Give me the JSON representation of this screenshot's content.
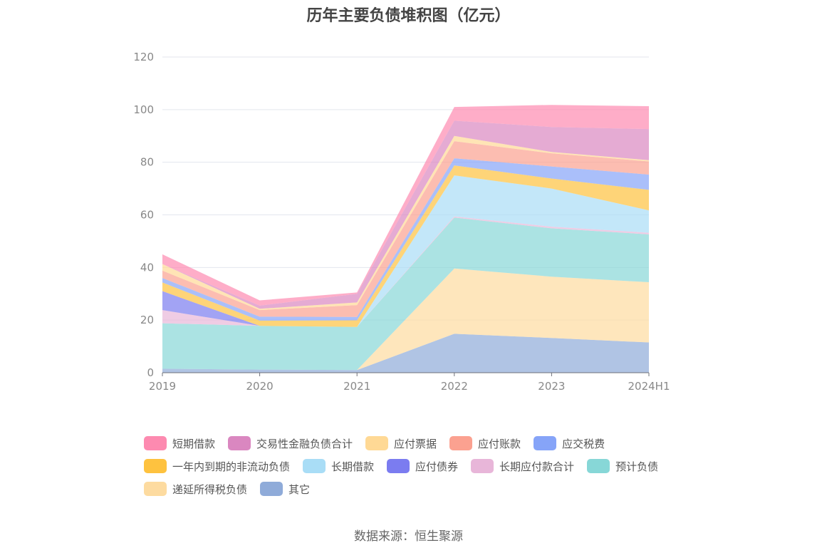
{
  "chart_data": {
    "type": "area",
    "stacked": true,
    "title": "历年主要负债堆积图（亿元）",
    "categories": [
      "2019",
      "2020",
      "2021",
      "2022",
      "2023",
      "2024H1"
    ],
    "ylim": [
      0,
      120
    ],
    "yticks": [
      0,
      20,
      40,
      60,
      80,
      100,
      120
    ],
    "grid": true,
    "legend_position": "bottom",
    "series": [
      {
        "name": "其它",
        "color": "#8fabd9",
        "values": [
          1.5,
          1.2,
          1.0,
          14.8,
          13.2,
          11.5
        ]
      },
      {
        "name": "递延所得税负债",
        "color": "#fddba0",
        "values": [
          0.0,
          0.0,
          0.0,
          24.8,
          23.3,
          22.9
        ]
      },
      {
        "name": "预计负债",
        "color": "#87d7d7",
        "values": [
          17.3,
          16.6,
          16.4,
          19.4,
          18.4,
          18.2
        ]
      },
      {
        "name": "长期应付款合计",
        "color": "#e8b6d9",
        "values": [
          5.0,
          0.0,
          0.0,
          0.4,
          0.6,
          0.6
        ]
      },
      {
        "name": "应付债券",
        "color": "#7b7cf0",
        "values": [
          7.2,
          0.0,
          0.0,
          0.0,
          0.0,
          0.0
        ]
      },
      {
        "name": "长期借款",
        "color": "#a9ddf6",
        "values": [
          0.0,
          0.0,
          0.0,
          15.6,
          14.5,
          8.5
        ]
      },
      {
        "name": "一年内到期的非流动负债",
        "color": "#fec23f",
        "values": [
          3.3,
          2.0,
          2.5,
          3.8,
          3.8,
          7.8
        ]
      },
      {
        "name": "应交税费",
        "color": "#86a4f8",
        "values": [
          1.7,
          1.5,
          1.3,
          2.7,
          4.6,
          5.8
        ]
      },
      {
        "name": "应付账款",
        "color": "#fba190",
        "values": [
          2.8,
          2.5,
          4.5,
          6.5,
          5.0,
          5.0
        ]
      },
      {
        "name": "应付票据",
        "color": "#ffd995",
        "values": [
          2.5,
          0.5,
          1.0,
          2.0,
          0.5,
          0.5
        ]
      },
      {
        "name": "交易性金融负债合计",
        "color": "#da87c0",
        "values": [
          0.0,
          1.2,
          3.3,
          5.8,
          9.5,
          11.8
        ]
      },
      {
        "name": "短期借款",
        "color": "#fd8ab0",
        "values": [
          3.7,
          2.0,
          0.5,
          5.2,
          8.4,
          8.7
        ]
      }
    ]
  },
  "legend_order": [
    "短期借款",
    "交易性金融负债合计",
    "应付票据",
    "应付账款",
    "应交税费",
    "一年内到期的非流动负债",
    "长期借款",
    "应付债券",
    "长期应付款合计",
    "预计负债",
    "递延所得税负债",
    "其它"
  ],
  "source": "数据来源：恒生聚源"
}
